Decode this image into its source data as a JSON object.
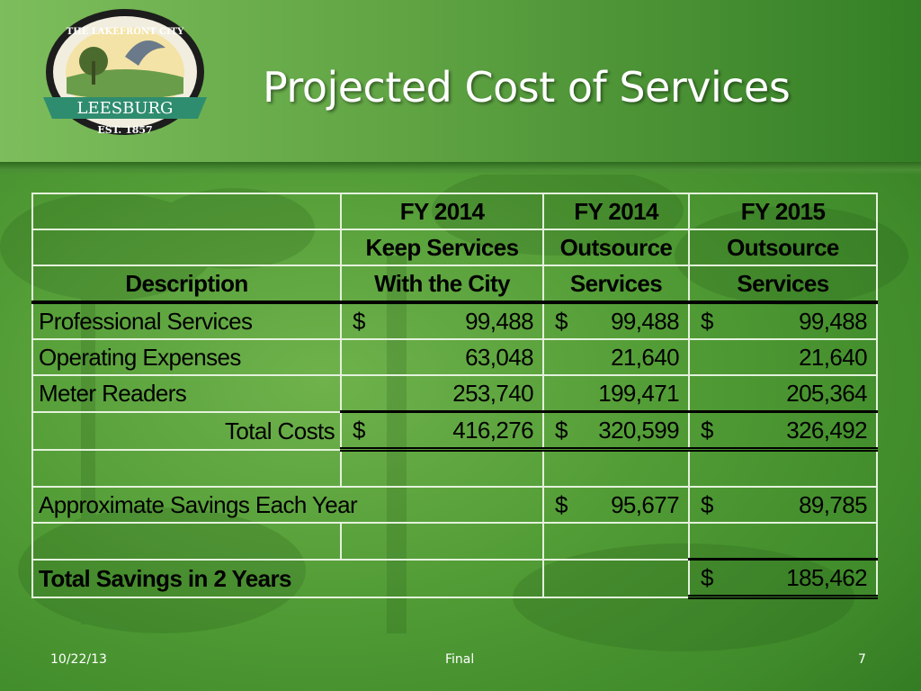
{
  "logo": {
    "top_text": "THE LAKEFRONT CITY",
    "name": "LEESBURG",
    "est": "EST. 1857"
  },
  "title": "Projected Cost of Services",
  "table": {
    "header": {
      "row1": [
        "",
        "FY 2014",
        "FY 2014",
        "FY 2015"
      ],
      "row2": [
        "",
        "Keep Services",
        "Outsource",
        "Outsource"
      ],
      "row3": [
        "Description",
        "With the City",
        "Services",
        "Services"
      ]
    },
    "rows": {
      "professional": {
        "label": "Professional Services",
        "cur": "$",
        "v1": "99,488",
        "v2": "99,488",
        "v3": "99,488"
      },
      "operating": {
        "label": "Operating Expenses",
        "v1": "63,048",
        "v2": "21,640",
        "v3": "21,640"
      },
      "meter": {
        "label": "Meter Readers",
        "v1": "253,740",
        "v2": "199,471",
        "v3": "205,364"
      },
      "total": {
        "label": "Total Costs",
        "cur": "$",
        "v1": "416,276",
        "v2": "320,599",
        "v3": "326,492"
      },
      "savings": {
        "label": "Approximate Savings Each Year",
        "cur": "$",
        "v2": "95,677",
        "v3": "89,785"
      },
      "total_savings": {
        "label": "Total Savings in 2 Years",
        "cur": "$",
        "v3": "185,462"
      }
    }
  },
  "footer": {
    "date": "10/22/13",
    "status": "Final",
    "page": "7"
  },
  "colors": {
    "green_light": "#6fb24c",
    "green_dark": "#2f7520",
    "grid": "#e4f1dc",
    "text_white": "#ffffff"
  }
}
